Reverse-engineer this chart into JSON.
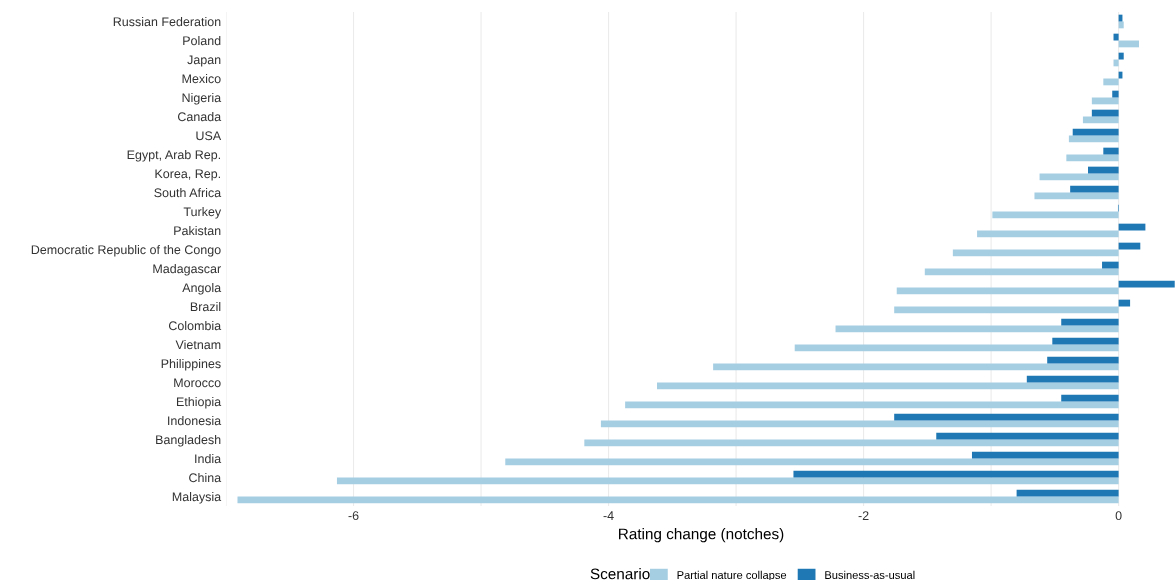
{
  "chart_data": {
    "type": "bar",
    "orientation": "horizontal",
    "xlabel": "Rating change (notches)",
    "legend_title": "Scenario",
    "legend": "bottom",
    "grid": "x",
    "categories": [
      "Russian Federation",
      "Poland",
      "Japan",
      "Mexico",
      "Nigeria",
      "Canada",
      "USA",
      "Egypt, Arab Rep.",
      "Korea, Rep.",
      "South Africa",
      "Turkey",
      "Pakistan",
      "Democratic Republic of the Congo",
      "Madagascar",
      "Angola",
      "Brazil",
      "Colombia",
      "Vietnam",
      "Philippines",
      "Morocco",
      "Ethiopia",
      "Indonesia",
      "Bangladesh",
      "India",
      "China",
      "Malaysia"
    ],
    "xlim": [
      -7,
      0.45
    ],
    "xticks": [
      {
        "value": -7,
        "label": null
      },
      -6,
      {
        "value": -5,
        "label": null
      },
      -4,
      {
        "value": -3,
        "label": null
      },
      -2,
      {
        "value": -1,
        "label": null
      },
      0
    ],
    "series": [
      {
        "name": "Partial nature collapse",
        "color": "#a6cee3",
        "values": [
          0.04,
          0.16,
          -0.04,
          -0.12,
          -0.21,
          -0.28,
          -0.39,
          -0.41,
          -0.62,
          -0.66,
          -0.99,
          -1.11,
          -1.3,
          -1.52,
          -1.74,
          -1.76,
          -2.22,
          -2.54,
          -3.18,
          -3.62,
          -3.87,
          -4.06,
          -4.19,
          -4.81,
          -6.13,
          -6.91
        ]
      },
      {
        "name": "Business-as-usual",
        "color": "#1f78b4",
        "values": [
          0.03,
          -0.04,
          0.04,
          0.03,
          -0.05,
          -0.21,
          -0.36,
          -0.12,
          -0.24,
          -0.38,
          -0.005,
          0.21,
          0.17,
          -0.13,
          0.44,
          0.09,
          -0.45,
          -0.52,
          -0.56,
          -0.72,
          -0.45,
          -1.76,
          -1.43,
          -1.15,
          -2.55,
          -0.8
        ]
      }
    ]
  }
}
